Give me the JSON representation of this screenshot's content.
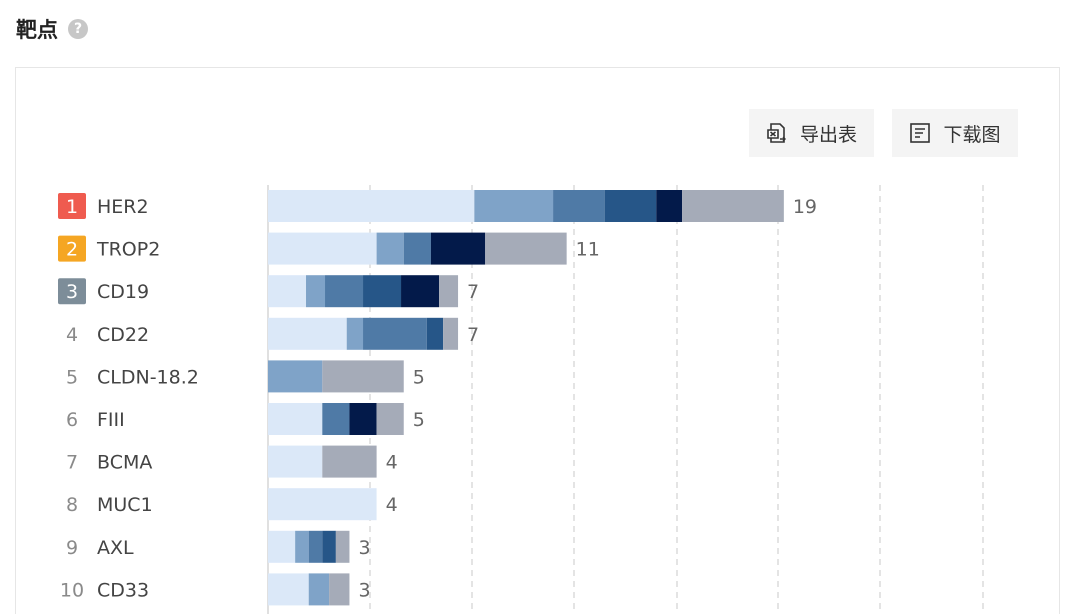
{
  "header": {
    "title": "靶点",
    "help_icon": "question-circle-icon",
    "help_glyph": "?"
  },
  "toolbar": {
    "export_label": "导出表",
    "export_icon": "excel-export-icon",
    "download_label": "下载图",
    "download_icon": "image-download-icon"
  },
  "colors": {
    "rank1": "#ef5b4f",
    "rank2": "#f5a623",
    "rank3": "#7d8d99",
    "grid": "#d6d6d6",
    "segments": [
      "#dbe8f8",
      "#7fa3c8",
      "#4f7aa6",
      "#265688",
      "#031a4a",
      "#a5abb8"
    ]
  },
  "chart_data": {
    "type": "bar",
    "orientation": "horizontal",
    "stacked": true,
    "categories": [
      "HER2",
      "TROP2",
      "CD19",
      "CD22",
      "CLDN-18.2",
      "FIII",
      "BCMA",
      "MUC1",
      "AXL",
      "CD33"
    ],
    "ranks": [
      "1",
      "2",
      "3",
      "4",
      "5",
      "6",
      "7",
      "8",
      "9",
      "10"
    ],
    "totals": [
      19,
      11,
      7,
      7,
      5,
      5,
      4,
      4,
      3,
      3
    ],
    "series": [
      {
        "values": [
          7.6,
          4.0,
          1.4,
          2.9,
          0,
          2.0,
          2.0,
          4.0,
          1.0,
          1.5
        ]
      },
      {
        "values": [
          2.9,
          1.0,
          0.7,
          0.6,
          2.0,
          0,
          0,
          0,
          0.5,
          0.75
        ]
      },
      {
        "values": [
          1.9,
          1.0,
          1.4,
          2.35,
          0,
          1.0,
          0,
          0,
          0.5,
          0
        ]
      },
      {
        "values": [
          1.9,
          0,
          1.4,
          0.6,
          0,
          0,
          0,
          0,
          0.5,
          0
        ]
      },
      {
        "values": [
          0.95,
          2.0,
          1.4,
          0,
          0,
          1.0,
          0,
          0,
          0,
          0
        ]
      },
      {
        "values": [
          3.75,
          3.0,
          0.7,
          0.55,
          3.0,
          1.0,
          2.0,
          0,
          0.5,
          0.75
        ]
      }
    ],
    "xlim": [
      0,
      21
    ],
    "grid": true,
    "legend": "none"
  }
}
